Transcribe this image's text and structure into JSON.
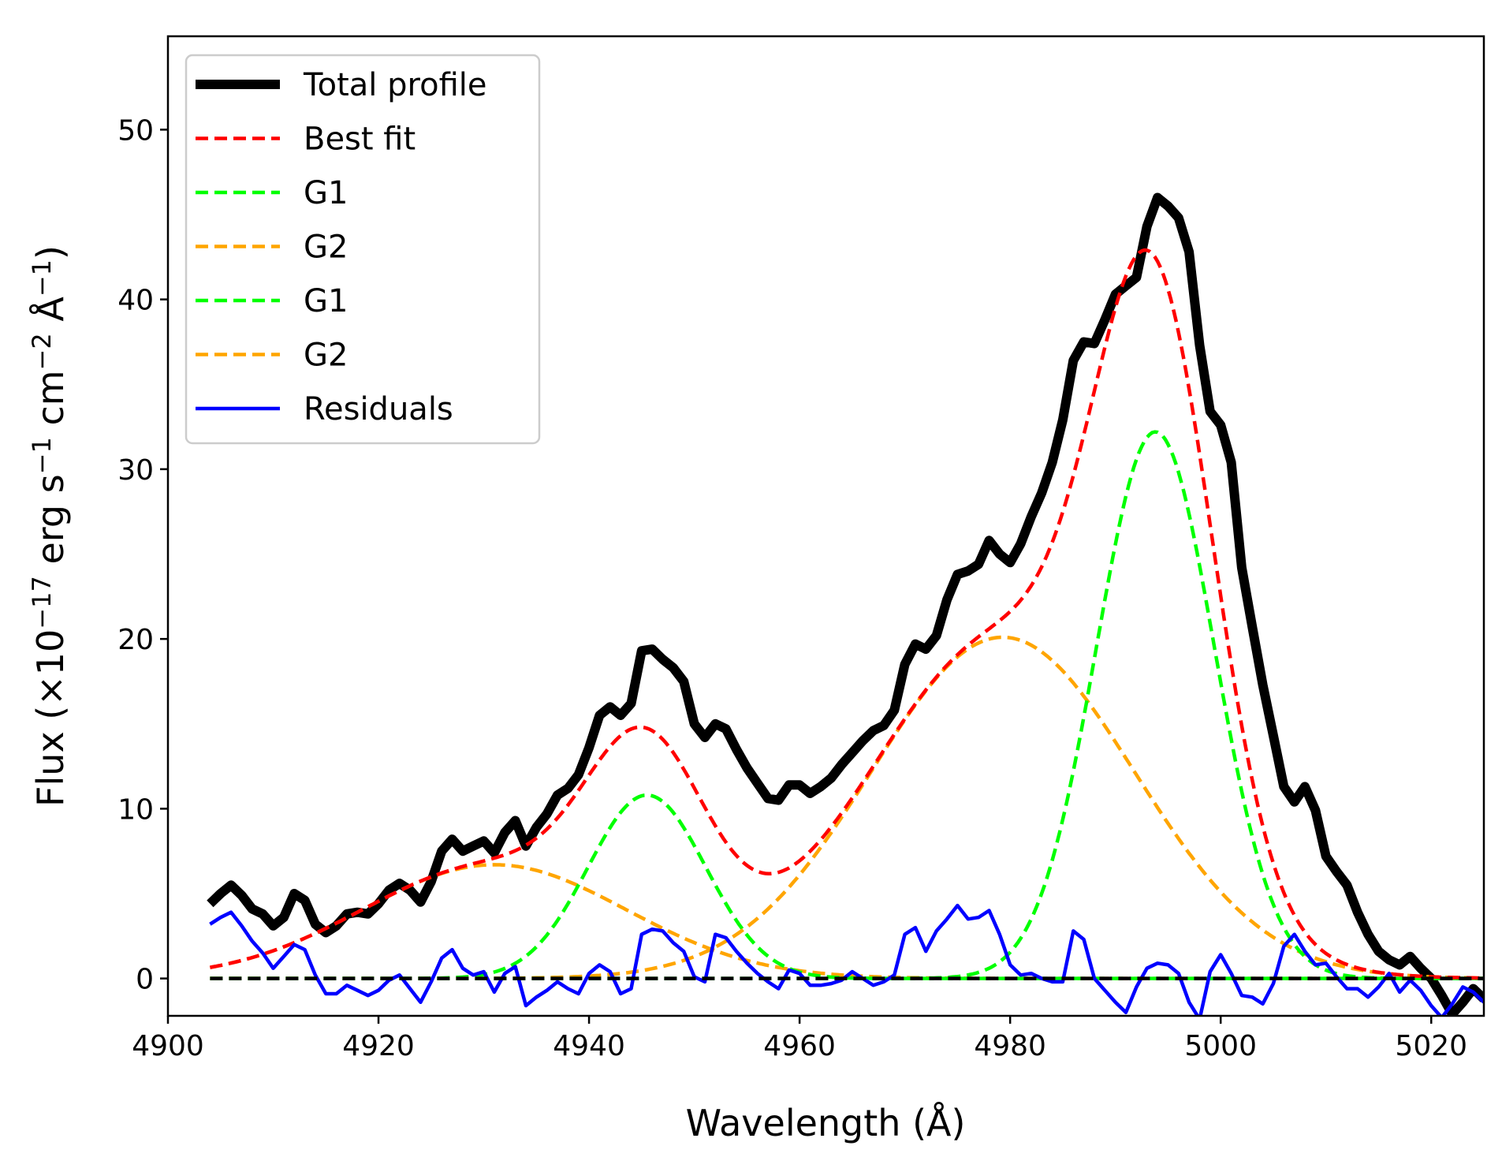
{
  "chart_data": {
    "type": "line",
    "title": "",
    "xlabel": "Wavelength (Å)",
    "ylabel_parts": {
      "prefix": "Flux (×10",
      "exp1": "−17",
      "mid1": " erg s",
      "exp2": "−1",
      "mid2": " cm",
      "exp3": "−2",
      "mid3": " Å",
      "exp4": "−1",
      "suffix": ")"
    },
    "xlim": [
      4900,
      5025
    ],
    "ylim": [
      -2.2,
      55.5
    ],
    "xticks": [
      {
        "value": 4900,
        "label": "4900"
      },
      {
        "value": 4920,
        "label": "4920"
      },
      {
        "value": 4940,
        "label": "4940"
      },
      {
        "value": 4960,
        "label": "4960"
      },
      {
        "value": 4980,
        "label": "4980"
      },
      {
        "value": 5000,
        "label": "5000"
      },
      {
        "value": 5020,
        "label": "5020"
      }
    ],
    "yticks": [
      {
        "value": 0,
        "label": "0"
      },
      {
        "value": 10,
        "label": "10"
      },
      {
        "value": 20,
        "label": "20"
      },
      {
        "value": 30,
        "label": "30"
      },
      {
        "value": 40,
        "label": "40"
      },
      {
        "value": 50,
        "label": "50"
      }
    ],
    "grid": false,
    "legend_position": "top-left",
    "legend": [
      {
        "label": "Total profile",
        "color": "#000000",
        "style": "solid",
        "weight": "thick"
      },
      {
        "label": "Best fit",
        "color": "#ff0000",
        "style": "dashed",
        "weight": "normal"
      },
      {
        "label": "G1",
        "color": "#00ff00",
        "style": "dashed",
        "weight": "normal"
      },
      {
        "label": "G2",
        "color": "#ffa500",
        "style": "dashed",
        "weight": "normal"
      },
      {
        "label": "G1",
        "color": "#00ff00",
        "style": "dashed",
        "weight": "normal"
      },
      {
        "label": "G2",
        "color": "#ffa500",
        "style": "dashed",
        "weight": "normal"
      },
      {
        "label": "Residuals",
        "color": "#0000ff",
        "style": "solid",
        "weight": "normal"
      }
    ],
    "zero_line": {
      "y": 0,
      "x_range": [
        4904,
        5025
      ],
      "color": "#000000",
      "style": "dashed"
    },
    "gaussians": [
      {
        "name": "G2 (broad, blue wing)",
        "amplitude": 6.7,
        "center": 4931,
        "sigma": 12.5,
        "color": "#ffa500"
      },
      {
        "name": "G1 (narrow, 4959-like)",
        "amplitude": 10.8,
        "center": 4945.5,
        "sigma": 5.6,
        "color": "#00ff00"
      },
      {
        "name": "G2 (broad)",
        "amplitude": 20.1,
        "center": 4979.3,
        "sigma": 12.5,
        "color": "#ffa500"
      },
      {
        "name": "G1 (narrow, 5007-like)",
        "amplitude": 32.2,
        "center": 4993.8,
        "sigma": 5.6,
        "color": "#00ff00"
      }
    ],
    "gaussian_x_range": [
      4904,
      5025
    ],
    "series": [
      {
        "name": "Total profile",
        "color": "#000000",
        "x": [
          4904,
          4905,
          4906,
          4907,
          4908,
          4909,
          4910,
          4911,
          4912,
          4913,
          4914,
          4915,
          4916,
          4917,
          4918,
          4919,
          4920,
          4921,
          4922,
          4923,
          4924,
          4925,
          4926,
          4927,
          4928,
          4929,
          4930,
          4931,
          4932,
          4933,
          4934,
          4935,
          4936,
          4937,
          4938,
          4939,
          4940,
          4941,
          4942,
          4943,
          4944,
          4945,
          4946,
          4947,
          4948,
          4949,
          4950,
          4951,
          4952,
          4953,
          4954,
          4955,
          4956,
          4957,
          4958,
          4959,
          4960,
          4961,
          4962,
          4963,
          4964,
          4965,
          4966,
          4967,
          4968,
          4969,
          4970,
          4971,
          4972,
          4973,
          4974,
          4975,
          4976,
          4977,
          4978,
          4979,
          4980,
          4981,
          4982,
          4983,
          4984,
          4985,
          4986,
          4987,
          4988,
          4989,
          4990,
          4991,
          4992,
          4993,
          4994,
          4995,
          4996,
          4997,
          4998,
          4999,
          5000,
          5001,
          5002,
          5003,
          5004,
          5005,
          5006,
          5007,
          5008,
          5009,
          5010,
          5011,
          5012,
          5013,
          5014,
          5015,
          5016,
          5017,
          5018,
          5019,
          5020,
          5021,
          5022,
          5023,
          5024,
          5025
        ],
        "values": [
          4.4,
          5.0,
          5.5,
          4.9,
          4.1,
          3.8,
          3.1,
          3.6,
          5.0,
          4.6,
          3.2,
          2.7,
          3.1,
          3.8,
          3.9,
          3.8,
          4.4,
          5.2,
          5.6,
          5.2,
          4.5,
          5.7,
          7.5,
          8.2,
          7.5,
          7.8,
          8.1,
          7.4,
          8.6,
          9.3,
          7.8,
          8.9,
          9.7,
          10.8,
          11.2,
          12.0,
          13.6,
          15.5,
          16.0,
          15.5,
          16.2,
          19.3,
          19.4,
          18.8,
          18.3,
          17.5,
          15.0,
          14.2,
          15.0,
          14.7,
          13.5,
          12.4,
          11.5,
          10.6,
          10.5,
          11.4,
          11.4,
          10.9,
          11.3,
          11.8,
          12.6,
          13.3,
          14.0,
          14.6,
          14.9,
          15.8,
          18.5,
          19.7,
          19.4,
          20.2,
          22.3,
          23.8,
          24.0,
          24.4,
          25.8,
          25.0,
          24.5,
          25.6,
          27.2,
          28.6,
          30.4,
          32.9,
          36.4,
          37.5,
          37.4,
          38.8,
          40.3,
          40.8,
          41.3,
          44.3,
          46.0,
          45.5,
          44.8,
          42.8,
          37.3,
          33.4,
          32.6,
          30.4,
          24.2,
          20.7,
          17.3,
          14.3,
          11.3,
          10.4,
          11.3,
          9.9,
          7.2,
          6.3,
          5.5,
          3.9,
          2.6,
          1.6,
          1.1,
          0.8,
          1.3,
          0.6,
          0.0,
          -1.0,
          -2.1,
          -1.4,
          -0.6,
          -1.2
        ]
      },
      {
        "name": "Residuals",
        "color": "#0000ff",
        "x": [
          4904,
          4905,
          4906,
          4907,
          4908,
          4909,
          4910,
          4911,
          4912,
          4913,
          4914,
          4915,
          4916,
          4917,
          4918,
          4919,
          4920,
          4921,
          4922,
          4923,
          4924,
          4925,
          4926,
          4927,
          4928,
          4929,
          4930,
          4931,
          4932,
          4933,
          4934,
          4935,
          4936,
          4937,
          4938,
          4939,
          4940,
          4941,
          4942,
          4943,
          4944,
          4945,
          4946,
          4947,
          4948,
          4949,
          4950,
          4951,
          4952,
          4953,
          4954,
          4955,
          4956,
          4957,
          4958,
          4959,
          4960,
          4961,
          4962,
          4963,
          4964,
          4965,
          4966,
          4967,
          4968,
          4969,
          4970,
          4971,
          4972,
          4973,
          4974,
          4975,
          4976,
          4977,
          4978,
          4979,
          4980,
          4981,
          4982,
          4983,
          4984,
          4985,
          4986,
          4987,
          4988,
          4989,
          4990,
          4991,
          4992,
          4993,
          4994,
          4995,
          4996,
          4997,
          4998,
          4999,
          5000,
          5001,
          5002,
          5003,
          5004,
          5005,
          5006,
          5007,
          5008,
          5009,
          5010,
          5011,
          5012,
          5013,
          5014,
          5015,
          5016,
          5017,
          5018,
          5019,
          5020,
          5021,
          5022,
          5023,
          5024,
          5025
        ],
        "values": [
          3.2,
          3.6,
          3.9,
          3.1,
          2.2,
          1.5,
          0.6,
          1.3,
          2.0,
          1.7,
          0.2,
          -0.9,
          -0.9,
          -0.4,
          -0.7,
          -1.0,
          -0.7,
          -0.1,
          0.2,
          -0.6,
          -1.4,
          -0.2,
          1.2,
          1.7,
          0.6,
          0.2,
          0.4,
          -0.8,
          0.3,
          0.7,
          -1.6,
          -1.1,
          -0.7,
          -0.2,
          -0.6,
          -0.9,
          0.3,
          0.8,
          0.4,
          -0.9,
          -0.6,
          2.6,
          2.9,
          2.8,
          2.1,
          1.6,
          0.1,
          -0.2,
          2.6,
          2.4,
          1.6,
          0.9,
          0.3,
          -0.2,
          -0.6,
          0.5,
          0.3,
          -0.4,
          -0.4,
          -0.3,
          -0.1,
          0.4,
          0.0,
          -0.4,
          -0.2,
          0.2,
          2.6,
          3.0,
          1.6,
          2.8,
          3.5,
          4.3,
          3.5,
          3.6,
          4.0,
          2.6,
          0.8,
          0.2,
          0.3,
          0.0,
          -0.2,
          -0.2,
          2.8,
          2.3,
          0.0,
          -0.7,
          -1.4,
          -2.0,
          -0.5,
          0.6,
          0.9,
          0.8,
          0.3,
          -1.4,
          -2.4,
          0.4,
          1.4,
          0.3,
          -1.0,
          -1.1,
          -1.5,
          -0.3,
          1.9,
          2.6,
          1.6,
          0.8,
          0.9,
          0.1,
          -0.6,
          -0.6,
          -1.1,
          -0.5,
          0.3,
          -0.8,
          -0.1,
          -0.7,
          -1.6,
          -2.3,
          -1.5,
          -0.5,
          -0.8,
          -1.4
        ]
      }
    ]
  }
}
